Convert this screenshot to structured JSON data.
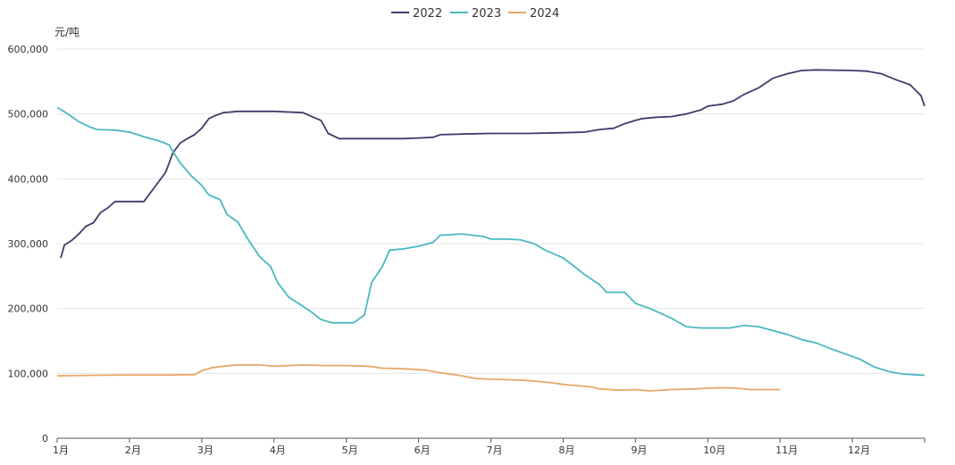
{
  "chart_data": {
    "type": "line",
    "title": "",
    "xlabel": "",
    "ylabel": "元/吨",
    "ylim": [
      0,
      600000
    ],
    "yticks": [
      0,
      100000,
      200000,
      300000,
      400000,
      500000,
      600000
    ],
    "ytick_labels": [
      "0",
      "100,000",
      "200,000",
      "300,000",
      "400,000",
      "500,000",
      "600,000"
    ],
    "x_domain": [
      1,
      13
    ],
    "xticks": [
      1,
      2,
      3,
      4,
      5,
      6,
      7,
      8,
      9,
      10,
      11,
      12
    ],
    "xtick_labels": [
      "1月",
      "2月",
      "3月",
      "4月",
      "5月",
      "6月",
      "7月",
      "8月",
      "9月",
      "10月",
      "11月",
      "12月"
    ],
    "grid": "horizontal",
    "legend_position": "top-center",
    "series": [
      {
        "name": "2022",
        "color": "#3f3c6b",
        "points": [
          [
            1.05,
            278000
          ],
          [
            1.1,
            298000
          ],
          [
            1.2,
            305000
          ],
          [
            1.3,
            315000
          ],
          [
            1.4,
            327000
          ],
          [
            1.5,
            332000
          ],
          [
            1.6,
            348000
          ],
          [
            1.7,
            355000
          ],
          [
            1.8,
            365000
          ],
          [
            2.0,
            365000
          ],
          [
            2.2,
            365000
          ],
          [
            2.3,
            380000
          ],
          [
            2.4,
            395000
          ],
          [
            2.5,
            410000
          ],
          [
            2.6,
            440000
          ],
          [
            2.7,
            455000
          ],
          [
            2.8,
            462000
          ],
          [
            2.9,
            468000
          ],
          [
            3.0,
            478000
          ],
          [
            3.1,
            493000
          ],
          [
            3.2,
            498000
          ],
          [
            3.3,
            502000
          ],
          [
            3.5,
            504000
          ],
          [
            4.0,
            504000
          ],
          [
            4.2,
            503000
          ],
          [
            4.4,
            502000
          ],
          [
            4.5,
            497000
          ],
          [
            4.65,
            490000
          ],
          [
            4.75,
            470000
          ],
          [
            4.9,
            462000
          ],
          [
            5.2,
            462000
          ],
          [
            5.8,
            462000
          ],
          [
            6.0,
            463000
          ],
          [
            6.2,
            464000
          ],
          [
            6.3,
            468000
          ],
          [
            6.6,
            469000
          ],
          [
            7.0,
            470000
          ],
          [
            7.5,
            470000
          ],
          [
            8.0,
            471000
          ],
          [
            8.3,
            472000
          ],
          [
            8.5,
            476000
          ],
          [
            8.7,
            478000
          ],
          [
            8.85,
            485000
          ],
          [
            9.0,
            490000
          ],
          [
            9.1,
            493000
          ],
          [
            9.3,
            495000
          ],
          [
            9.5,
            496000
          ],
          [
            9.7,
            500000
          ],
          [
            9.9,
            506000
          ],
          [
            10.0,
            512000
          ],
          [
            10.2,
            515000
          ],
          [
            10.35,
            520000
          ],
          [
            10.5,
            530000
          ],
          [
            10.7,
            540000
          ],
          [
            10.9,
            555000
          ],
          [
            11.1,
            562000
          ],
          [
            11.3,
            567000
          ],
          [
            11.5,
            568000
          ],
          [
            12.0,
            567000
          ],
          [
            12.2,
            566000
          ],
          [
            12.4,
            562000
          ],
          [
            12.6,
            553000
          ],
          [
            12.8,
            545000
          ],
          [
            12.95,
            528000
          ],
          [
            13.0,
            512000
          ]
        ]
      },
      {
        "name": "2023",
        "color": "#4ab8bf",
        "points": [
          [
            1.0,
            510000
          ],
          [
            1.15,
            500000
          ],
          [
            1.3,
            488000
          ],
          [
            1.45,
            480000
          ],
          [
            1.55,
            476000
          ],
          [
            1.8,
            475000
          ],
          [
            2.0,
            472000
          ],
          [
            2.2,
            465000
          ],
          [
            2.45,
            457000
          ],
          [
            2.55,
            452000
          ],
          [
            2.6,
            442000
          ],
          [
            2.7,
            425000
          ],
          [
            2.85,
            405000
          ],
          [
            3.0,
            390000
          ],
          [
            3.1,
            375000
          ],
          [
            3.25,
            368000
          ],
          [
            3.35,
            345000
          ],
          [
            3.5,
            333000
          ],
          [
            3.65,
            305000
          ],
          [
            3.8,
            280000
          ],
          [
            3.95,
            265000
          ],
          [
            4.05,
            240000
          ],
          [
            4.2,
            218000
          ],
          [
            4.35,
            207000
          ],
          [
            4.5,
            196000
          ],
          [
            4.65,
            183000
          ],
          [
            4.8,
            178000
          ],
          [
            5.1,
            178000
          ],
          [
            5.25,
            190000
          ],
          [
            5.35,
            240000
          ],
          [
            5.5,
            265000
          ],
          [
            5.6,
            290000
          ],
          [
            5.8,
            292000
          ],
          [
            6.0,
            296000
          ],
          [
            6.2,
            302000
          ],
          [
            6.3,
            313000
          ],
          [
            6.6,
            315000
          ],
          [
            6.9,
            311000
          ],
          [
            7.0,
            307000
          ],
          [
            7.2,
            307000
          ],
          [
            7.4,
            306000
          ],
          [
            7.6,
            300000
          ],
          [
            7.75,
            290000
          ],
          [
            7.9,
            283000
          ],
          [
            8.0,
            278000
          ],
          [
            8.15,
            265000
          ],
          [
            8.3,
            252000
          ],
          [
            8.5,
            237000
          ],
          [
            8.6,
            225000
          ],
          [
            8.85,
            225000
          ],
          [
            9.0,
            208000
          ],
          [
            9.2,
            200000
          ],
          [
            9.5,
            185000
          ],
          [
            9.7,
            172000
          ],
          [
            9.9,
            170000
          ],
          [
            10.3,
            170000
          ],
          [
            10.5,
            174000
          ],
          [
            10.7,
            172000
          ],
          [
            10.9,
            166000
          ],
          [
            11.1,
            160000
          ],
          [
            11.3,
            152000
          ],
          [
            11.5,
            147000
          ],
          [
            11.7,
            138000
          ],
          [
            11.9,
            130000
          ],
          [
            12.1,
            122000
          ],
          [
            12.3,
            110000
          ],
          [
            12.5,
            103000
          ],
          [
            12.7,
            99000
          ],
          [
            12.85,
            98000
          ],
          [
            13.0,
            97000
          ]
        ]
      },
      {
        "name": "2024",
        "color": "#e8a868",
        "points": [
          [
            1.0,
            96000
          ],
          [
            1.2,
            96500
          ],
          [
            1.5,
            97000
          ],
          [
            2.0,
            97500
          ],
          [
            2.5,
            97500
          ],
          [
            2.9,
            98000
          ],
          [
            3.0,
            104000
          ],
          [
            3.15,
            109000
          ],
          [
            3.3,
            111000
          ],
          [
            3.5,
            113000
          ],
          [
            3.8,
            113000
          ],
          [
            4.0,
            111000
          ],
          [
            4.2,
            112000
          ],
          [
            4.4,
            113000
          ],
          [
            4.7,
            112000
          ],
          [
            5.0,
            112000
          ],
          [
            5.3,
            111000
          ],
          [
            5.5,
            108000
          ],
          [
            5.8,
            107000
          ],
          [
            6.1,
            105000
          ],
          [
            6.3,
            101000
          ],
          [
            6.5,
            98000
          ],
          [
            6.8,
            92000
          ],
          [
            7.0,
            91000
          ],
          [
            7.3,
            90000
          ],
          [
            7.5,
            89000
          ],
          [
            7.8,
            86000
          ],
          [
            8.0,
            83000
          ],
          [
            8.2,
            81000
          ],
          [
            8.4,
            79000
          ],
          [
            8.5,
            76000
          ],
          [
            8.8,
            74000
          ],
          [
            9.0,
            75000
          ],
          [
            9.2,
            73000
          ],
          [
            9.5,
            75000
          ],
          [
            9.8,
            76000
          ],
          [
            10.0,
            77000
          ],
          [
            10.2,
            78000
          ],
          [
            10.4,
            77000
          ],
          [
            10.6,
            75000
          ],
          [
            10.8,
            75000
          ],
          [
            11.0,
            75000
          ]
        ]
      }
    ]
  }
}
